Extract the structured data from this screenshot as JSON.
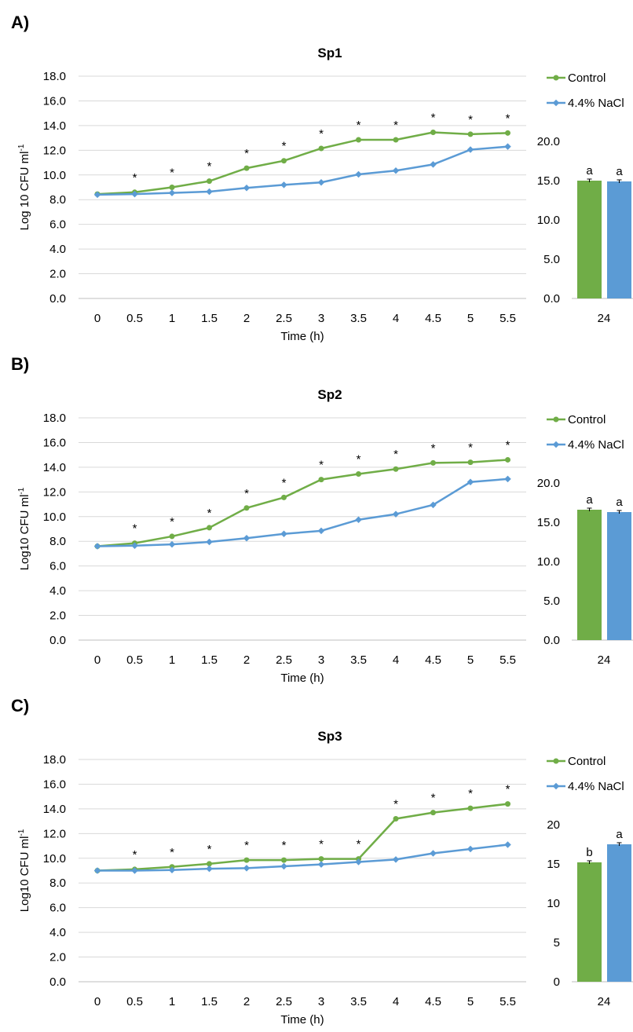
{
  "colors": {
    "control": "#70ad47",
    "nacl": "#5b9bd5"
  },
  "chart_data": [
    {
      "type": "line",
      "panel_label": "A)",
      "title": "Sp1",
      "xlabel": "Time (h)",
      "ylabel": "Log 10 CFU ml",
      "ylabel_sup": "-1",
      "x": [
        "0",
        "0.5",
        "1",
        "1.5",
        "2",
        "2.5",
        "3",
        "3.5",
        "4",
        "4.5",
        "5",
        "5.5"
      ],
      "ylim": [
        0,
        18
      ],
      "yticks": [
        "0.0",
        "2.0",
        "4.0",
        "6.0",
        "8.0",
        "10.0",
        "12.0",
        "14.0",
        "16.0",
        "18.0"
      ],
      "series": [
        {
          "name": "Control",
          "values": [
            8.45,
            8.6,
            9.0,
            9.5,
            10.55,
            11.15,
            12.15,
            12.85,
            12.85,
            13.45,
            13.3,
            13.4
          ]
        },
        {
          "name": "4.4% NaCl",
          "values": [
            8.4,
            8.45,
            8.55,
            8.65,
            8.95,
            9.2,
            9.4,
            10.05,
            10.35,
            10.85,
            12.05,
            12.3
          ]
        }
      ],
      "significance": [
        "",
        "*",
        "*",
        "*",
        "*",
        "*",
        "*",
        "*",
        "*",
        "*",
        "*",
        "*"
      ],
      "bar": {
        "category": "24",
        "ylim": [
          0,
          20
        ],
        "yticks": [
          "0.0",
          "5.0",
          "10.0",
          "15.0",
          "20.0"
        ],
        "values": [
          15.0,
          14.9
        ],
        "letters": [
          "a",
          "a"
        ]
      }
    },
    {
      "type": "line",
      "panel_label": "B)",
      "title": "Sp2",
      "xlabel": "Time (h)",
      "ylabel": "Log10 CFU ml",
      "ylabel_sup": "-1",
      "x": [
        "0",
        "0.5",
        "1",
        "1.5",
        "2",
        "2.5",
        "3",
        "3.5",
        "4",
        "4.5",
        "5",
        "5.5"
      ],
      "ylim": [
        0,
        18
      ],
      "yticks": [
        "0.0",
        "2.0",
        "4.0",
        "6.0",
        "8.0",
        "10.0",
        "12.0",
        "14.0",
        "16.0",
        "18.0"
      ],
      "series": [
        {
          "name": "Control",
          "values": [
            7.6,
            7.85,
            8.4,
            9.1,
            10.7,
            11.55,
            13.0,
            13.45,
            13.85,
            14.35,
            14.4,
            14.6
          ]
        },
        {
          "name": "4.4% NaCl",
          "values": [
            7.6,
            7.65,
            7.75,
            7.95,
            8.25,
            8.6,
            8.85,
            9.75,
            10.2,
            10.95,
            12.8,
            13.05
          ]
        }
      ],
      "significance": [
        "",
        "*",
        "*",
        "*",
        "*",
        "*",
        "*",
        "*",
        "*",
        "*",
        "*",
        "*"
      ],
      "bar": {
        "category": "24",
        "ylim": [
          0,
          20
        ],
        "yticks": [
          "0.0",
          "5.0",
          "10.0",
          "15.0",
          "20.0"
        ],
        "values": [
          16.6,
          16.3
        ],
        "letters": [
          "a",
          "a"
        ]
      }
    },
    {
      "type": "line",
      "panel_label": "C)",
      "title": "Sp3",
      "xlabel": "Time (h)",
      "ylabel": "Log10 CFU ml",
      "ylabel_sup": "-1",
      "x": [
        "0",
        "0.5",
        "1",
        "1.5",
        "2",
        "2.5",
        "3",
        "3.5",
        "4",
        "4.5",
        "5",
        "5.5"
      ],
      "ylim": [
        0,
        18
      ],
      "yticks": [
        "0.0",
        "2.0",
        "4.0",
        "6.0",
        "8.0",
        "10.0",
        "12.0",
        "14.0",
        "16.0",
        "18.0"
      ],
      "series": [
        {
          "name": "Control",
          "values": [
            9.0,
            9.1,
            9.3,
            9.55,
            9.85,
            9.85,
            9.95,
            9.95,
            13.2,
            13.7,
            14.05,
            14.4
          ]
        },
        {
          "name": "4.4% NaCl",
          "values": [
            9.0,
            9.0,
            9.05,
            9.15,
            9.2,
            9.35,
            9.5,
            9.7,
            9.9,
            10.4,
            10.75,
            11.1
          ]
        }
      ],
      "significance": [
        "",
        "*",
        "*",
        "*",
        "*",
        "*",
        "*",
        "*",
        "*",
        "*",
        "*",
        "*"
      ],
      "bar": {
        "category": "24",
        "ylim": [
          0,
          20
        ],
        "yticks": [
          "0",
          "5",
          "10",
          "15",
          "20"
        ],
        "values": [
          15.2,
          17.5
        ],
        "letters": [
          "b",
          "a"
        ]
      }
    }
  ]
}
